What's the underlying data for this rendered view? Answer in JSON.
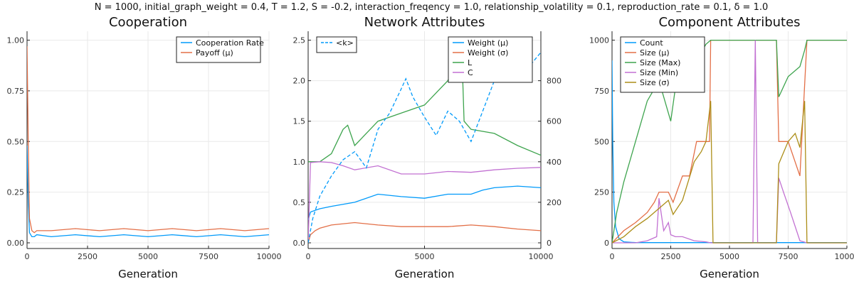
{
  "suptitle": "N = 1000, initial_graph_weight = 0.4, T = 1.2, S = -0.2, interaction_freqency = 1.0, relationship_volatility = 0.1, reproduction_rate = 0.1, δ = 1.0",
  "chart_data": [
    {
      "type": "line",
      "title": "Cooperation",
      "xlabel": "Generation",
      "ylabel": "",
      "xlim": [
        0,
        10000
      ],
      "ylim": [
        0,
        1.0
      ],
      "xticks": [
        0,
        2500,
        5000,
        7500,
        10000
      ],
      "yticks": [
        0.0,
        0.25,
        0.5,
        0.75,
        1.0
      ],
      "ytick_labels": [
        "0.00",
        "0.25",
        "0.50",
        "0.75",
        "1.00"
      ],
      "legend_position": "top-right",
      "grid": true,
      "series": [
        {
          "name": "Cooperation Rate",
          "color": "#009AFA",
          "x": [
            0,
            50,
            100,
            200,
            300,
            400,
            1000,
            2000,
            3000,
            4000,
            5000,
            6000,
            7000,
            8000,
            9000,
            10000
          ],
          "y": [
            0.48,
            0.2,
            0.05,
            0.03,
            0.03,
            0.04,
            0.03,
            0.04,
            0.03,
            0.04,
            0.03,
            0.04,
            0.03,
            0.04,
            0.03,
            0.04
          ]
        },
        {
          "name": "Payoff (μ)",
          "color": "#E36F47",
          "x": [
            0,
            50,
            100,
            200,
            300,
            400,
            1000,
            2000,
            3000,
            4000,
            5000,
            6000,
            7000,
            8000,
            9000,
            10000
          ],
          "y": [
            0.97,
            0.5,
            0.12,
            0.06,
            0.05,
            0.06,
            0.06,
            0.07,
            0.06,
            0.07,
            0.06,
            0.07,
            0.06,
            0.07,
            0.06,
            0.07
          ]
        }
      ]
    },
    {
      "type": "line",
      "title": "Network Attributes",
      "xlabel": "Generation",
      "ylabel": "",
      "xlim": [
        0,
        10000
      ],
      "ylim": [
        0,
        2.5
      ],
      "xticks": [
        0,
        5000,
        10000
      ],
      "yticks": [
        0.0,
        0.5,
        1.0,
        1.5,
        2.0,
        2.5
      ],
      "ytick_labels": [
        "0.0",
        "0.5",
        "1.0",
        "1.5",
        "2.0",
        "2.5"
      ],
      "y2lim": [
        0,
        1000
      ],
      "y2ticks": [
        0,
        200,
        400,
        600,
        800
      ],
      "legend_position": "top-right",
      "legend2_position": "top-left",
      "grid": true,
      "series": [
        {
          "name": "Weight (μ)",
          "color": "#009AFA",
          "axis": "left",
          "x": [
            0,
            100,
            300,
            500,
            1000,
            2000,
            3000,
            4000,
            5000,
            6000,
            7000,
            7500,
            8000,
            9000,
            10000
          ],
          "y": [
            0.28,
            0.38,
            0.4,
            0.42,
            0.45,
            0.5,
            0.6,
            0.57,
            0.55,
            0.6,
            0.6,
            0.65,
            0.68,
            0.7,
            0.68
          ]
        },
        {
          "name": "Weight (σ)",
          "color": "#E36F47",
          "axis": "left",
          "x": [
            0,
            100,
            300,
            500,
            1000,
            2000,
            3000,
            4000,
            5000,
            6000,
            7000,
            8000,
            9000,
            10000
          ],
          "y": [
            0.0,
            0.1,
            0.15,
            0.18,
            0.22,
            0.25,
            0.22,
            0.2,
            0.2,
            0.2,
            0.22,
            0.2,
            0.17,
            0.15
          ]
        },
        {
          "name": "L",
          "color": "#3EA44E",
          "axis": "left",
          "x": [
            0,
            100,
            300,
            500,
            1000,
            1500,
            1700,
            2000,
            3000,
            4000,
            5000,
            6000,
            6600,
            6700,
            7000,
            8000,
            9000,
            10000
          ],
          "y": [
            1.0,
            1.0,
            1.0,
            1.0,
            1.1,
            1.4,
            1.45,
            1.2,
            1.5,
            1.6,
            1.7,
            2.0,
            2.4,
            1.5,
            1.4,
            1.35,
            1.2,
            1.08
          ]
        },
        {
          "name": "C",
          "color": "#C271D2",
          "axis": "left",
          "x": [
            0,
            100,
            500,
            1000,
            1500,
            2000,
            3000,
            4000,
            5000,
            6000,
            7000,
            8000,
            9000,
            10000
          ],
          "y": [
            0.0,
            0.99,
            1.0,
            0.99,
            0.95,
            0.9,
            0.95,
            0.85,
            0.85,
            0.88,
            0.87,
            0.9,
            0.92,
            0.93
          ]
        },
        {
          "name": "<k>",
          "color": "#009AFA",
          "axis": "right",
          "dashed": true,
          "x": [
            0,
            200,
            500,
            1000,
            1500,
            2000,
            2500,
            3000,
            3500,
            4000,
            4200,
            4500,
            5000,
            5500,
            6000,
            6500,
            7000,
            7500,
            8000,
            8500,
            9000,
            9500,
            10000
          ],
          "y": [
            0,
            120,
            230,
            330,
            410,
            450,
            370,
            560,
            640,
            760,
            810,
            720,
            620,
            530,
            650,
            600,
            500,
            650,
            800,
            880,
            960,
            870,
            940
          ]
        }
      ]
    },
    {
      "type": "line",
      "title": "Component Attributes",
      "xlabel": "Generation",
      "ylabel": "",
      "xlim": [
        0,
        10000
      ],
      "ylim": [
        0,
        1000
      ],
      "xticks": [
        0,
        2500,
        5000,
        7500,
        10000
      ],
      "yticks": [
        0,
        250,
        500,
        750,
        1000
      ],
      "ytick_labels": [
        "0",
        "250",
        "500",
        "750",
        "1000"
      ],
      "legend_position": "top-left",
      "grid": true,
      "series": [
        {
          "name": "Count",
          "color": "#009AFA",
          "x": [
            0,
            30,
            80,
            150,
            300,
            500,
            1000,
            2000,
            4000,
            6000,
            8000,
            10000
          ],
          "y": [
            900,
            500,
            200,
            80,
            20,
            5,
            1,
            1,
            1,
            1,
            1,
            1
          ]
        },
        {
          "name": "Size (μ)",
          "color": "#E36F47",
          "x": [
            0,
            500,
            1000,
            1500,
            1800,
            2000,
            2400,
            2600,
            3000,
            3300,
            3600,
            4000,
            4150,
            4200,
            6000,
            6100,
            6200,
            7000,
            7100,
            7500,
            8000,
            8300,
            10000
          ],
          "y": [
            0,
            60,
            100,
            150,
            200,
            250,
            250,
            200,
            330,
            330,
            500,
            500,
            500,
            1000,
            1000,
            1000,
            1000,
            1000,
            500,
            500,
            330,
            1000,
            1000
          ]
        },
        {
          "name": "Size (Max)",
          "color": "#3EA44E",
          "x": [
            0,
            200,
            500,
            1000,
            1500,
            2000,
            2500,
            2800,
            3000,
            3500,
            4000,
            4200,
            6000,
            6100,
            6200,
            7000,
            7100,
            7500,
            8000,
            8200,
            8300,
            10000
          ],
          "y": [
            0,
            150,
            300,
            500,
            700,
            800,
            600,
            850,
            750,
            880,
            980,
            1000,
            1000,
            1000,
            1000,
            1000,
            720,
            820,
            870,
            950,
            1000,
            1000
          ]
        },
        {
          "name": "Size (Min)",
          "color": "#C271D2",
          "x": [
            0,
            1000,
            1500,
            1900,
            2000,
            2200,
            2400,
            2500,
            2700,
            3000,
            3500,
            4000,
            4200,
            6000,
            6100,
            6200,
            7000,
            7100,
            7300,
            7600,
            8000,
            8300,
            10000
          ],
          "y": [
            0,
            0,
            10,
            30,
            220,
            60,
            100,
            40,
            30,
            30,
            10,
            5,
            0,
            0,
            1000,
            0,
            0,
            320,
            250,
            150,
            10,
            0,
            0
          ]
        },
        {
          "name": "Size (σ)",
          "color": "#AC8E18",
          "x": [
            0,
            500,
            1000,
            1500,
            2000,
            2400,
            2600,
            3000,
            3500,
            3800,
            4000,
            4200,
            4300,
            6000,
            7000,
            7100,
            7500,
            7800,
            8000,
            8200,
            8300,
            10000
          ],
          "y": [
            0,
            30,
            80,
            120,
            170,
            210,
            140,
            210,
            400,
            450,
            500,
            700,
            0,
            0,
            0,
            390,
            500,
            540,
            470,
            700,
            0,
            0
          ]
        }
      ]
    }
  ]
}
